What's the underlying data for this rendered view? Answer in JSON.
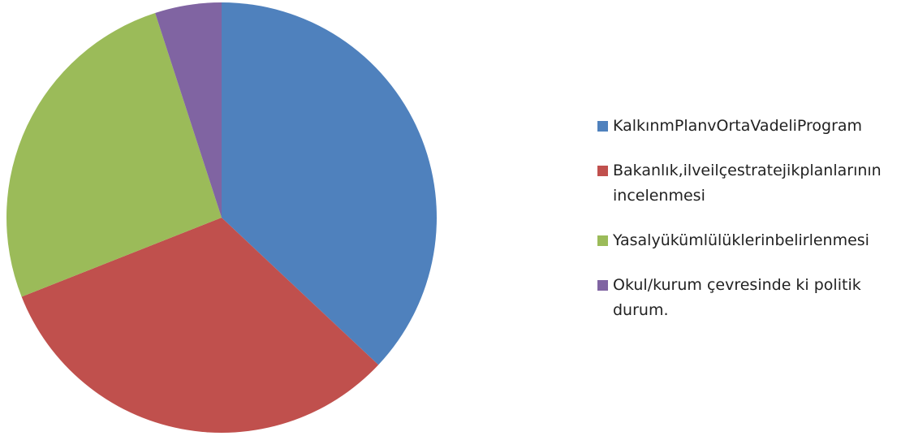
{
  "chart_data": {
    "type": "pie",
    "categories": [
      "KalkınmPlanvOrtaVadeliProgram",
      "Bakanlık,ilveilçestratejikplanlarının incelenmesi",
      "Yasalyükümlülüklerinbelirlenmesi",
      "Okul/kurum çevresinde ki politik durum."
    ],
    "values": [
      37,
      32,
      26,
      5
    ],
    "colors": [
      "#4f81bd",
      "#c0504d",
      "#9bbb59",
      "#8064a2"
    ],
    "legend": "right"
  }
}
